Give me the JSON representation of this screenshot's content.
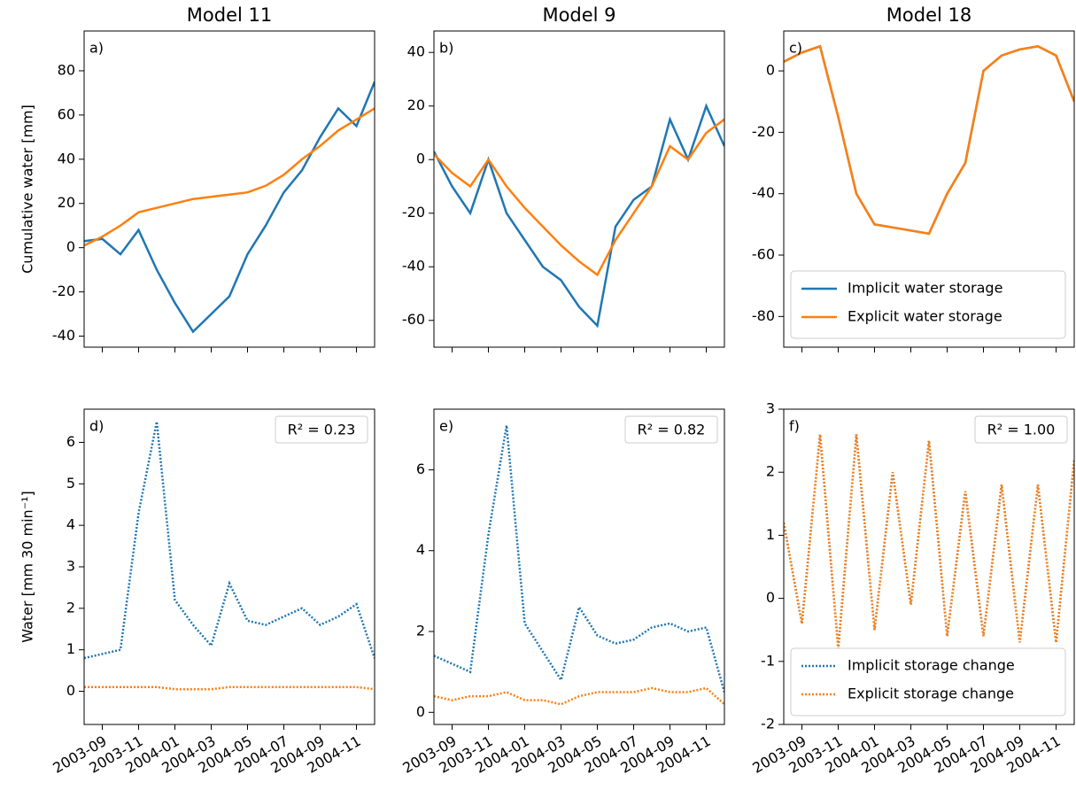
{
  "chart_data": [
    {
      "type": "line",
      "title": "Model 11",
      "panel_label": "a)",
      "ylabel": "Cumulative water [mm]",
      "x": [
        "2003-08",
        "2003-09",
        "2003-10",
        "2003-11",
        "2003-12",
        "2004-01",
        "2004-02",
        "2004-03",
        "2004-04",
        "2004-05",
        "2004-06",
        "2004-07",
        "2004-08",
        "2004-09",
        "2004-10",
        "2004-11",
        "2004-12"
      ],
      "series": [
        {
          "name": "Implicit water storage",
          "color": "#1f77b4",
          "values": [
            3,
            4,
            -3,
            8,
            -10,
            -25,
            -38,
            -30,
            -22,
            -3,
            10,
            25,
            35,
            50,
            63,
            55,
            75
          ]
        },
        {
          "name": "Explicit water storage",
          "color": "#ff7f0e",
          "values": [
            1,
            5,
            10,
            16,
            18,
            20,
            22,
            23,
            24,
            25,
            28,
            33,
            40,
            46,
            53,
            58,
            63
          ]
        }
      ],
      "xlim": [
        "2003-08",
        "2004-12"
      ],
      "ylim": [
        -45,
        98
      ],
      "yticks": [
        -40,
        -20,
        0,
        20,
        40,
        60,
        80
      ]
    },
    {
      "type": "line",
      "title": "Model 9",
      "panel_label": "b)",
      "x": [
        "2003-08",
        "2003-09",
        "2003-10",
        "2003-11",
        "2003-12",
        "2004-01",
        "2004-02",
        "2004-03",
        "2004-04",
        "2004-05",
        "2004-06",
        "2004-07",
        "2004-08",
        "2004-09",
        "2004-10",
        "2004-11",
        "2004-12"
      ],
      "series": [
        {
          "name": "Implicit water storage",
          "color": "#1f77b4",
          "values": [
            3,
            -10,
            -20,
            0,
            -20,
            -30,
            -40,
            -45,
            -55,
            -62,
            -25,
            -15,
            -10,
            15,
            0,
            20,
            5
          ]
        },
        {
          "name": "Explicit water storage",
          "color": "#ff7f0e",
          "values": [
            2,
            -5,
            -10,
            0,
            -10,
            -18,
            -25,
            -32,
            -38,
            -43,
            -30,
            -20,
            -10,
            5,
            0,
            10,
            15
          ]
        }
      ],
      "xlim": [
        "2003-08",
        "2004-12"
      ],
      "ylim": [
        -70,
        48
      ],
      "yticks": [
        -60,
        -40,
        -20,
        0,
        20,
        40
      ]
    },
    {
      "type": "line",
      "title": "Model 18",
      "panel_label": "c)",
      "legend": "lower right",
      "x": [
        "2003-08",
        "2003-09",
        "2003-10",
        "2003-11",
        "2003-12",
        "2004-01",
        "2004-02",
        "2004-03",
        "2004-04",
        "2004-05",
        "2004-06",
        "2004-07",
        "2004-08",
        "2004-09",
        "2004-10",
        "2004-11",
        "2004-12"
      ],
      "series": [
        {
          "name": "Implicit water storage",
          "color": "#1f77b4",
          "values": [
            3,
            6,
            8,
            -15,
            -40,
            -50,
            -51,
            -52,
            -53,
            -40,
            -30,
            0,
            5,
            7,
            8,
            5,
            -10
          ]
        },
        {
          "name": "Explicit water storage",
          "color": "#ff7f0e",
          "values": [
            3,
            6,
            8,
            -15,
            -40,
            -50,
            -51,
            -52,
            -53,
            -40,
            -30,
            0,
            5,
            7,
            8,
            5,
            -10
          ]
        }
      ],
      "xlim": [
        "2003-08",
        "2004-12"
      ],
      "ylim": [
        -90,
        13
      ],
      "yticks": [
        -80,
        -60,
        -40,
        -20,
        0
      ]
    },
    {
      "type": "line",
      "panel_label": "d)",
      "annotation": "R² = 0.23",
      "ylabel": "Water [mm 30 min⁻¹]",
      "linestyle": "dotted",
      "x": [
        "2003-08",
        "2003-09",
        "2003-10",
        "2003-11",
        "2003-12",
        "2004-01",
        "2004-02",
        "2004-03",
        "2004-04",
        "2004-05",
        "2004-06",
        "2004-07",
        "2004-08",
        "2004-09",
        "2004-10",
        "2004-11",
        "2004-12"
      ],
      "series": [
        {
          "name": "Implicit storage change",
          "color": "#1f77b4",
          "values": [
            0.8,
            0.9,
            1.0,
            4.3,
            6.5,
            2.2,
            1.6,
            1.1,
            2.6,
            1.7,
            1.6,
            1.8,
            2.0,
            1.6,
            1.8,
            2.1,
            0.8
          ]
        },
        {
          "name": "Explicit storage change",
          "color": "#ff7f0e",
          "values": [
            0.1,
            0.1,
            0.1,
            0.1,
            0.1,
            0.05,
            0.05,
            0.05,
            0.1,
            0.1,
            0.1,
            0.1,
            0.1,
            0.1,
            0.1,
            0.1,
            0.05
          ]
        }
      ],
      "xlim": [
        "2003-08",
        "2004-12"
      ],
      "ylim": [
        -0.8,
        6.8
      ],
      "yticks": [
        0,
        1,
        2,
        3,
        4,
        5,
        6
      ],
      "xticks": [
        "2003-09",
        "2003-11",
        "2004-01",
        "2004-03",
        "2004-05",
        "2004-07",
        "2004-09",
        "2004-11"
      ]
    },
    {
      "type": "line",
      "panel_label": "e)",
      "annotation": "R² = 0.82",
      "linestyle": "dotted",
      "x": [
        "2003-08",
        "2003-09",
        "2003-10",
        "2003-11",
        "2003-12",
        "2004-01",
        "2004-02",
        "2004-03",
        "2004-04",
        "2004-05",
        "2004-06",
        "2004-07",
        "2004-08",
        "2004-09",
        "2004-10",
        "2004-11",
        "2004-12"
      ],
      "series": [
        {
          "name": "Implicit storage change",
          "color": "#1f77b4",
          "values": [
            1.4,
            1.2,
            1.0,
            4.4,
            7.1,
            2.2,
            1.5,
            0.8,
            2.6,
            1.9,
            1.7,
            1.8,
            2.1,
            2.2,
            2.0,
            2.1,
            0.5
          ]
        },
        {
          "name": "Explicit storage change",
          "color": "#ff7f0e",
          "values": [
            0.4,
            0.3,
            0.4,
            0.4,
            0.5,
            0.3,
            0.3,
            0.2,
            0.4,
            0.5,
            0.5,
            0.5,
            0.6,
            0.5,
            0.5,
            0.6,
            0.2
          ]
        }
      ],
      "xlim": [
        "2003-08",
        "2004-12"
      ],
      "ylim": [
        -0.3,
        7.5
      ],
      "yticks": [
        0,
        2,
        4,
        6
      ],
      "xticks": [
        "2003-09",
        "2003-11",
        "2004-01",
        "2004-03",
        "2004-05",
        "2004-07",
        "2004-09",
        "2004-11"
      ]
    },
    {
      "type": "line",
      "panel_label": "f)",
      "annotation": "R² = 1.00",
      "linestyle": "dotted",
      "legend": "lower right",
      "x": [
        "2003-08",
        "2003-09",
        "2003-10",
        "2003-11",
        "2003-12",
        "2004-01",
        "2004-02",
        "2004-03",
        "2004-04",
        "2004-05",
        "2004-06",
        "2004-07",
        "2004-08",
        "2004-09",
        "2004-10",
        "2004-11",
        "2004-12"
      ],
      "series": [
        {
          "name": "Implicit storage change",
          "color": "#1f77b4",
          "values": [
            1.2,
            -0.4,
            2.6,
            -0.8,
            2.6,
            -0.5,
            2.0,
            -0.1,
            2.5,
            -0.6,
            1.7,
            -0.6,
            1.8,
            -0.7,
            1.8,
            -0.7,
            2.2
          ]
        },
        {
          "name": "Explicit storage change",
          "color": "#ff7f0e",
          "values": [
            1.2,
            -0.4,
            2.6,
            -0.8,
            2.6,
            -0.5,
            2.0,
            -0.1,
            2.5,
            -0.6,
            1.7,
            -0.6,
            1.8,
            -0.7,
            1.8,
            -0.7,
            2.2
          ]
        }
      ],
      "xlim": [
        "2003-08",
        "2004-12"
      ],
      "ylim": [
        -2,
        3
      ],
      "yticks": [
        -2,
        -1,
        0,
        1,
        2,
        3
      ],
      "xticks": [
        "2003-09",
        "2003-11",
        "2004-01",
        "2004-03",
        "2004-05",
        "2004-07",
        "2004-09",
        "2004-11"
      ]
    }
  ]
}
